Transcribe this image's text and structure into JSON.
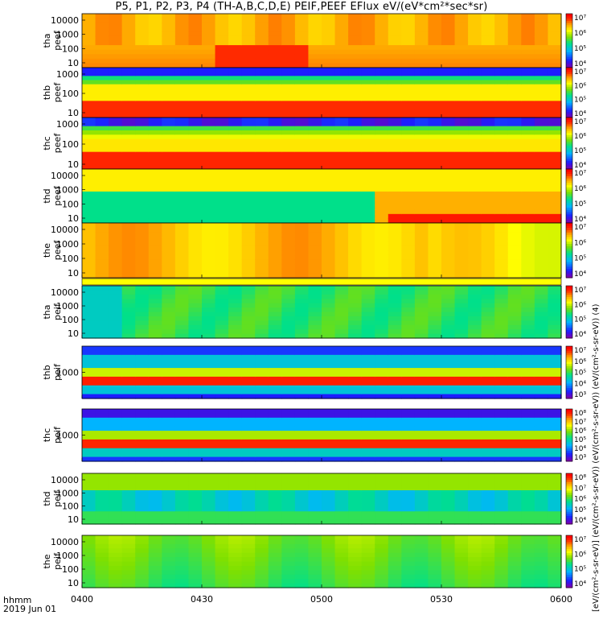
{
  "title": "P5, P1, P2, P3, P4 (TH-A,B,C,D,E) PEIF,PEEF EFlux eV/(eV*cm²*sec*sr)",
  "colorbar_unit_label": "[eV/(cm²-s-sr-eV)] (eV/(cm²-s-sr-eV)) (eV/(cm²-s-sr-eV)) (eV/(cm²-s-sr-eV)) (4)",
  "footer": {
    "time_label": "hhmm",
    "date_label": "2019 Jun 01"
  },
  "chart_data": {
    "type": "heatmap",
    "title": "P5, P1, P2, P3, P4 (TH-A,B,C,D,E) PEIF,PEEF EFlux eV/(eV*cm²*sec*sr)",
    "x_tick_labels": [
      "0400",
      "0430",
      "0500",
      "0530",
      "0600"
    ],
    "x_range": [
      "0400",
      "0600"
    ],
    "y_scale": "log",
    "colormap": "rainbow",
    "panels": [
      {
        "label_top": "tha",
        "label_bottom": "peef",
        "y_ticks": [
          "10",
          "100",
          "1000",
          "10000"
        ],
        "colorbar_ticks": [
          "10⁴",
          "10⁵",
          "10⁶",
          "10⁷"
        ]
      },
      {
        "label_top": "thb",
        "label_bottom": "peef",
        "y_ticks": [
          "10",
          "100",
          "1000"
        ],
        "colorbar_ticks": [
          "10⁴",
          "10⁵",
          "10⁶",
          "10⁷"
        ]
      },
      {
        "label_top": "thc",
        "label_bottom": "peef",
        "y_ticks": [
          "10",
          "100",
          "1000"
        ],
        "colorbar_ticks": [
          "10⁴",
          "10⁵",
          "10⁶",
          "10⁷"
        ]
      },
      {
        "label_top": "thd",
        "label_bottom": "peef",
        "y_ticks": [
          "10",
          "100",
          "1000",
          "10000"
        ],
        "colorbar_ticks": [
          "10⁴",
          "10⁵",
          "10⁶",
          "10⁷"
        ]
      },
      {
        "label_top": "the",
        "label_bottom": "peef",
        "y_ticks": [
          "10",
          "100",
          "1000",
          "10000"
        ],
        "colorbar_ticks": [
          "10⁴",
          "10⁵",
          "10⁶",
          "10⁷"
        ]
      },
      {
        "label_top": "tha",
        "label_bottom": "peif",
        "y_ticks": [
          "10",
          "100",
          "1000",
          "10000"
        ],
        "colorbar_ticks": [
          "10⁴",
          "10⁵",
          "10⁶",
          "10⁷"
        ]
      },
      {
        "label_top": "thb",
        "label_bottom": "peif",
        "y_ticks": [
          "1000"
        ],
        "colorbar_ticks": [
          "10³",
          "10⁴",
          "10⁵",
          "10⁶",
          "10⁷"
        ]
      },
      {
        "label_top": "thc",
        "label_bottom": "peif",
        "y_ticks": [
          "1000"
        ],
        "colorbar_ticks": [
          "10³",
          "10⁴",
          "10⁵",
          "10⁶",
          "10⁷",
          "10⁸"
        ]
      },
      {
        "label_top": "thd",
        "label_bottom": "peif",
        "y_ticks": [
          "10",
          "100",
          "1000",
          "10000"
        ],
        "colorbar_ticks": [
          "10⁴",
          "10⁵",
          "10⁶",
          "10⁷",
          "10⁸"
        ]
      },
      {
        "label_top": "the",
        "label_bottom": "peif",
        "y_ticks": [
          "10",
          "100",
          "1000",
          "10000"
        ],
        "colorbar_ticks": [
          "10⁴",
          "10⁵",
          "10⁶",
          "10⁷"
        ]
      }
    ]
  }
}
